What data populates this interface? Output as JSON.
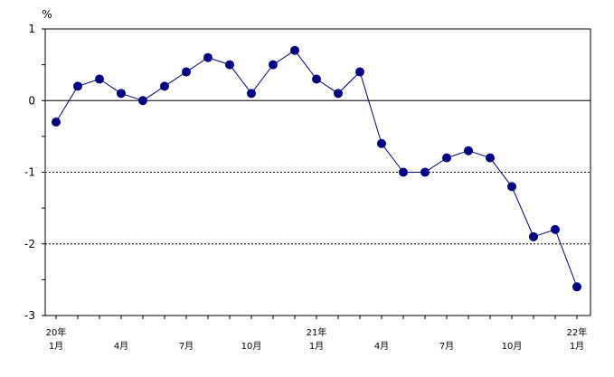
{
  "chart_data": {
    "type": "line",
    "title": "",
    "ylabel": "%",
    "xlabel": "",
    "ylim": [
      -3,
      1
    ],
    "yticks": [
      "1",
      "0",
      "-1",
      "-2",
      "-3"
    ],
    "year_labels": [
      {
        "index": 0,
        "label": "20年"
      },
      {
        "index": 12,
        "label": "21年"
      },
      {
        "index": 24,
        "label": "22年"
      }
    ],
    "month_labels": [
      {
        "index": 0,
        "label": "1月"
      },
      {
        "index": 3,
        "label": "4月"
      },
      {
        "index": 6,
        "label": "7月"
      },
      {
        "index": 9,
        "label": "10月"
      },
      {
        "index": 12,
        "label": "1月"
      },
      {
        "index": 15,
        "label": "4月"
      },
      {
        "index": 18,
        "label": "7月"
      },
      {
        "index": 21,
        "label": "10月"
      },
      {
        "index": 24,
        "label": "1月"
      }
    ],
    "grid": "dashed at -1 and -2; solid zero line",
    "series": [
      {
        "color": "#000080",
        "values": [
          -0.3,
          0.2,
          0.3,
          0.1,
          0.0,
          0.2,
          0.4,
          0.6,
          0.5,
          0.1,
          0.5,
          0.7,
          0.3,
          0.1,
          0.4,
          -0.6,
          -1.0,
          -1.0,
          -0.8,
          -0.7,
          -0.8,
          -1.2,
          -1.9,
          -1.8,
          -2.6
        ]
      }
    ]
  }
}
